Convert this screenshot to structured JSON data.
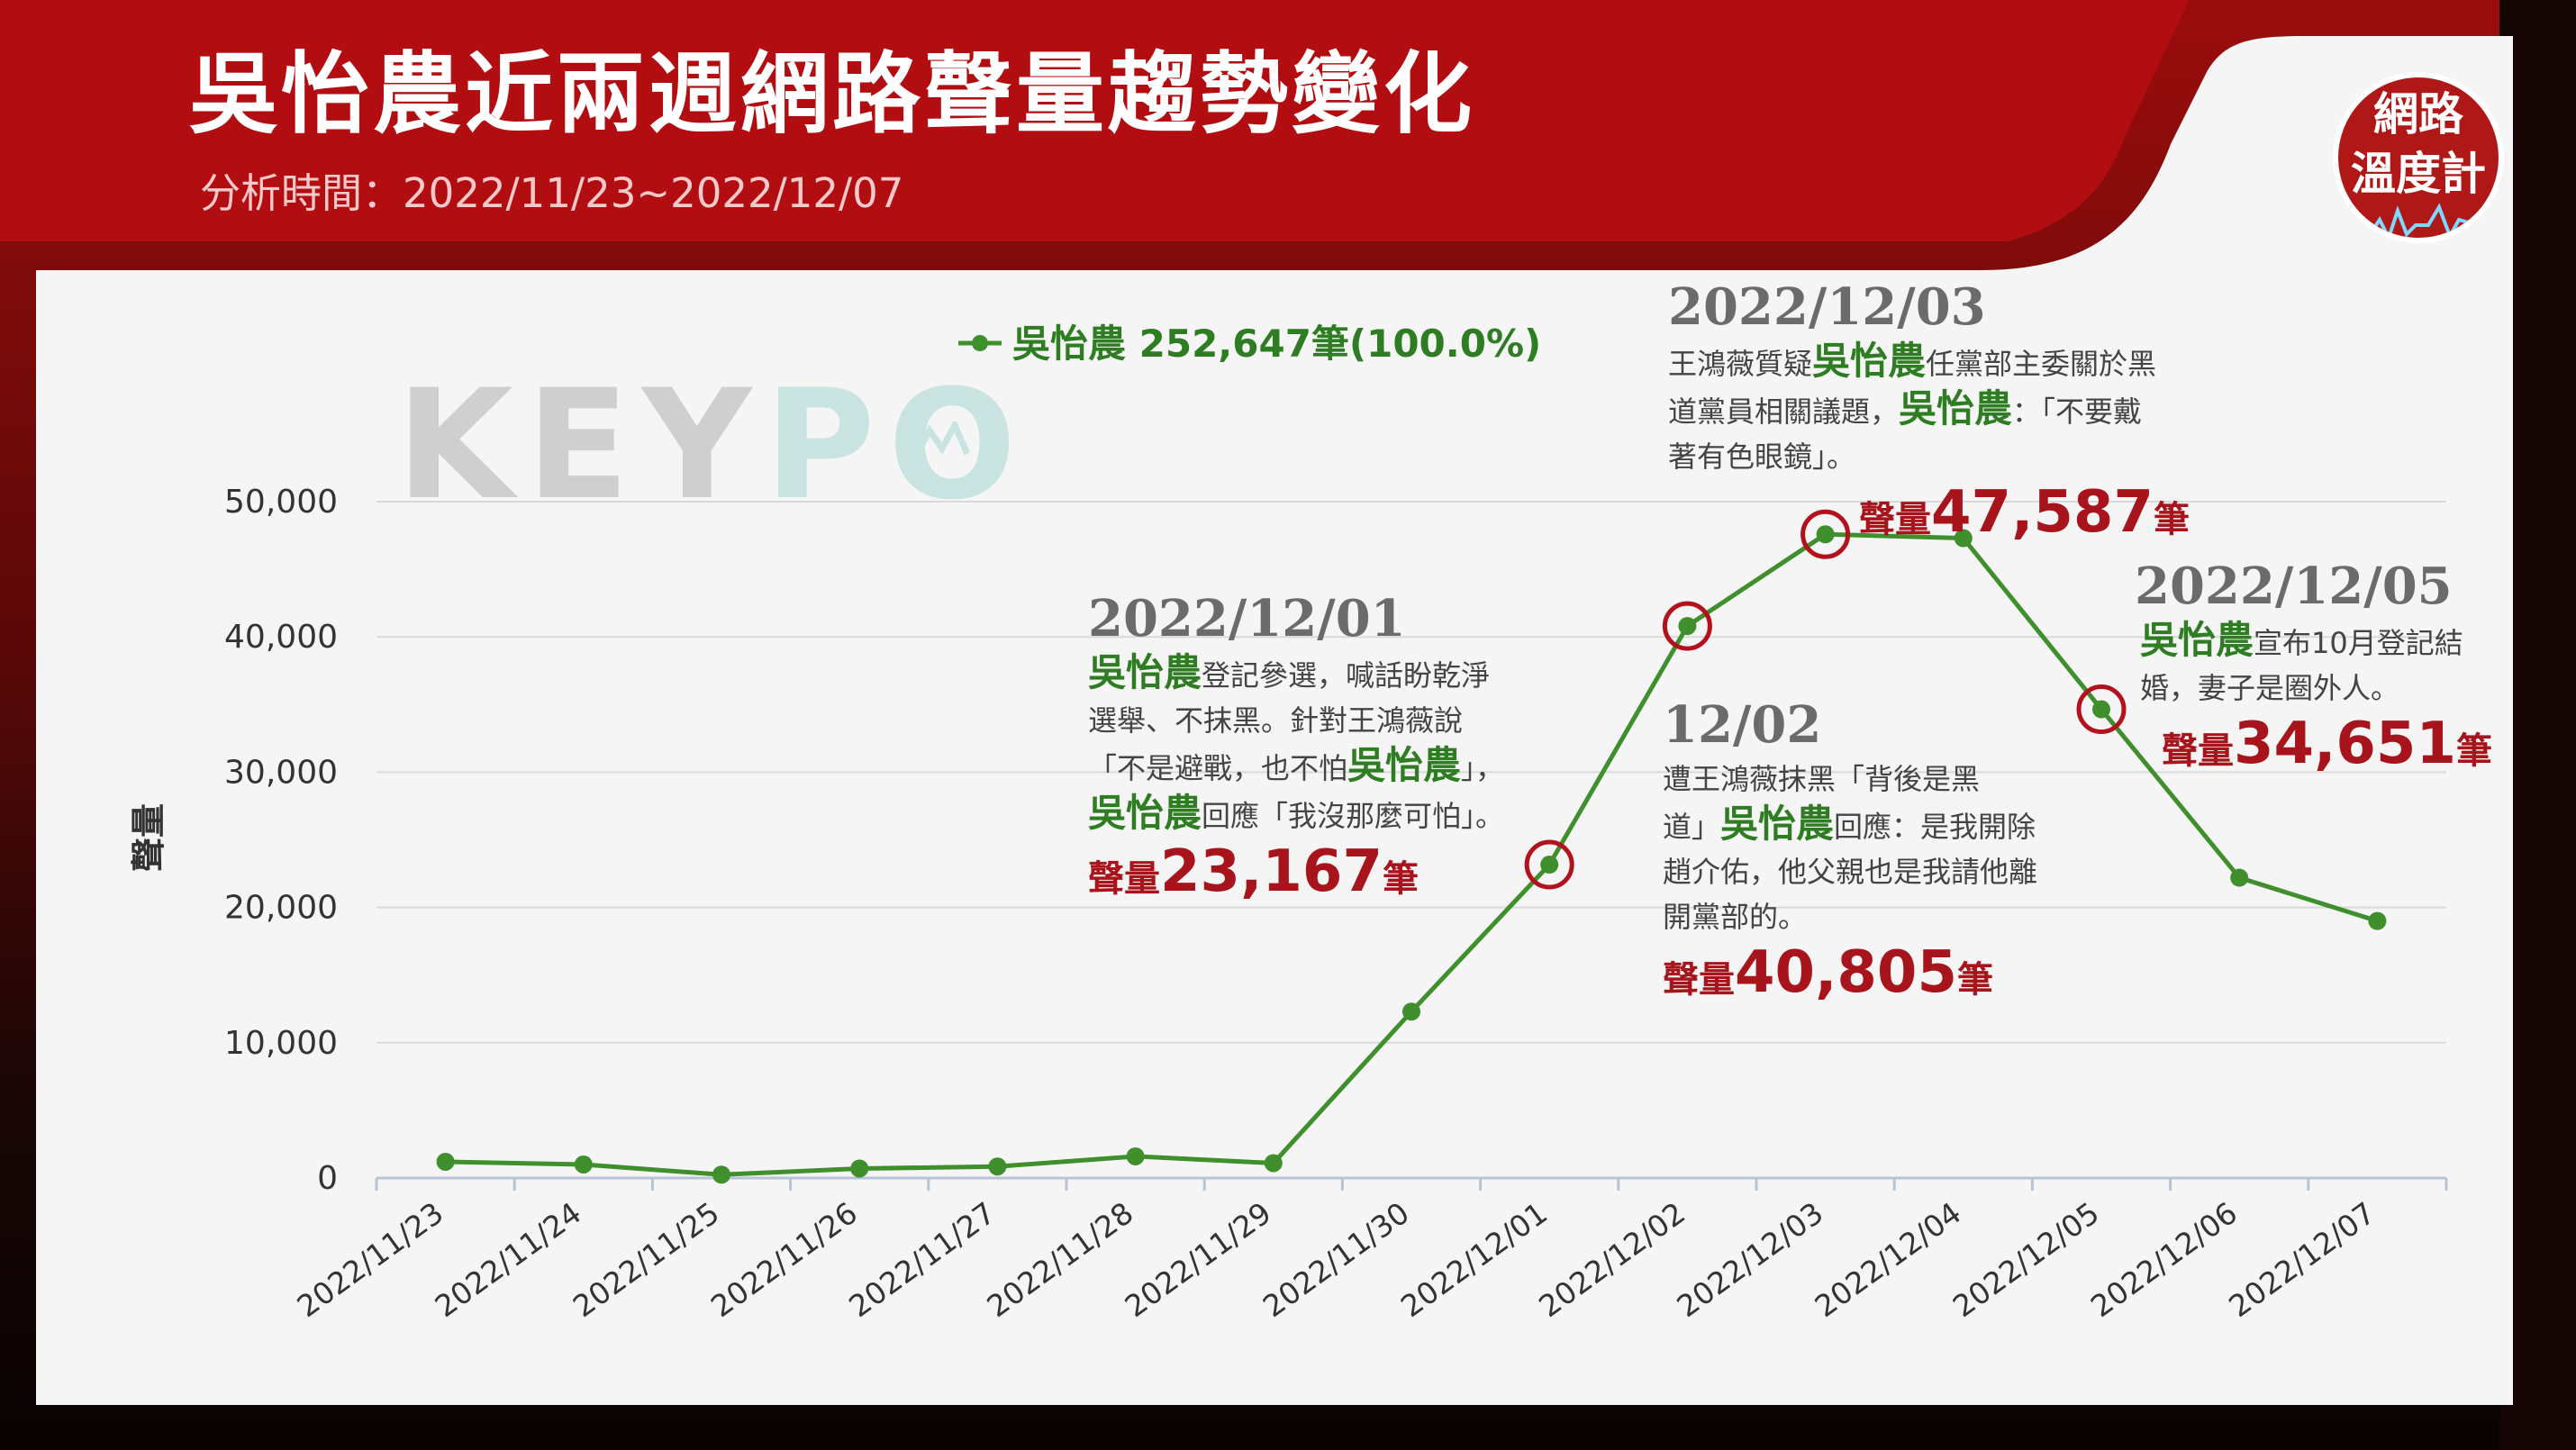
{
  "header": {
    "title": "吳怡農近兩週網路聲量趨勢變化",
    "subtitle": "分析時間：2022/11/23~2022/12/07",
    "badge_line1": "網路",
    "badge_line2": "溫度計"
  },
  "watermark": {
    "part1": "KEY",
    "part2": "PO"
  },
  "colors": {
    "series": "#3f8f2d",
    "marker_circle": "#b3121c",
    "brand_red": "#9b0d0d",
    "accent_red": "#a8141c"
  },
  "chart_data": {
    "type": "line",
    "ylabel": "聲量",
    "xlabel": "",
    "ylim": [
      0,
      50000
    ],
    "yticks": [
      0,
      10000,
      20000,
      30000,
      40000,
      50000
    ],
    "ytick_labels": [
      "0",
      "10,000",
      "20,000",
      "30,000",
      "40,000",
      "50,000"
    ],
    "grid": true,
    "legend_position": "top",
    "categories": [
      "2022/11/23",
      "2022/11/24",
      "2022/11/25",
      "2022/11/26",
      "2022/11/27",
      "2022/11/28",
      "2022/11/29",
      "2022/11/30",
      "2022/12/01",
      "2022/12/02",
      "2022/12/03",
      "2022/12/04",
      "2022/12/05",
      "2022/12/06",
      "2022/12/07"
    ],
    "series": [
      {
        "name": "吳怡農",
        "legend_label": "吳怡農 252,647筆(100.0%)",
        "values": [
          1200,
          1000,
          250,
          700,
          850,
          1600,
          1100,
          12300,
          23167,
          40805,
          47587,
          47300,
          34651,
          22200,
          19000
        ]
      }
    ],
    "highlighted_dates": [
      "2022/12/01",
      "2022/12/02",
      "2022/12/03",
      "2022/12/05"
    ]
  },
  "annotations": {
    "a1201": {
      "date": "2022/12/01",
      "l1_kw": "吳怡農",
      "l1": "登記參選，喊話盼乾淨",
      "l2": "選舉、不抹黑。針對王鴻薇說",
      "l3_pre": "「不是避戰，也不怕",
      "l3_kw": "吳怡農",
      "l3_post": "」，",
      "l4_kw": "吳怡農",
      "l4": "回應「我沒那麼可怕」。",
      "vol_label": "聲量",
      "vol_num": "23,167",
      "vol_unit": "筆"
    },
    "a1202": {
      "date": "12/02",
      "l1": "遭王鴻薇抹黑「背後是黑",
      "l2_pre": "道」",
      "l2_kw": "吳怡農",
      "l2_post": "回應：是我開除",
      "l3": "趙介佑，他父親也是我請他離",
      "l4": "開黨部的。",
      "vol_label": "聲量",
      "vol_num": "40,805",
      "vol_unit": "筆"
    },
    "a1203": {
      "date": "2022/12/03",
      "l1_pre": "王鴻薇質疑",
      "l1_kw": "吳怡農",
      "l1_post": "任黨部主委關於黑",
      "l2_pre": "道黨員相關議題，",
      "l2_kw": "吳怡農",
      "l2_post": "：「不要戴",
      "l3": "著有色眼鏡」。",
      "vol_label": "聲量",
      "vol_num": "47,587",
      "vol_unit": "筆"
    },
    "a1205": {
      "date": "2022/12/05",
      "l1_kw": "吳怡農",
      "l1_post": "宣布10月登記結",
      "l2": "婚，妻子是圈外人。",
      "vol_label": "聲量",
      "vol_num": "34,651",
      "vol_unit": "筆"
    }
  }
}
